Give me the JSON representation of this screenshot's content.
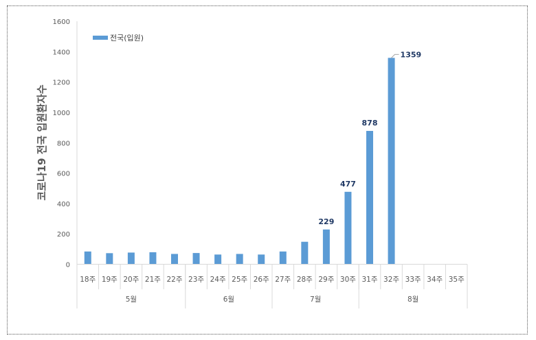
{
  "chart_data": {
    "type": "bar",
    "ylabel": "코로나19 전국 입원환자수",
    "ylim": [
      0,
      1600
    ],
    "yticks": [
      0,
      200,
      400,
      600,
      800,
      1000,
      1200,
      1400,
      1600
    ],
    "categories": [
      "18주",
      "19주",
      "20주",
      "21주",
      "22주",
      "23주",
      "24주",
      "25주",
      "26주",
      "27주",
      "28주",
      "29주",
      "30주",
      "31주",
      "32주",
      "33주",
      "34주",
      "35주"
    ],
    "groups": [
      {
        "label": "5월",
        "span": 5
      },
      {
        "label": "6월",
        "span": 4
      },
      {
        "label": "7월",
        "span": 4
      },
      {
        "label": "8월",
        "span": 5
      }
    ],
    "series": [
      {
        "name": "전국(입원)",
        "color": "#5b9bd5",
        "values": [
          84,
          73,
          77,
          79,
          68,
          74,
          64,
          68,
          64,
          84,
          148,
          229,
          477,
          878,
          1359,
          null,
          null,
          null
        ]
      }
    ],
    "data_labels": {
      "11": "229",
      "12": "477",
      "13": "878",
      "14": "1359"
    },
    "legend": "top-left",
    "grid": false
  }
}
